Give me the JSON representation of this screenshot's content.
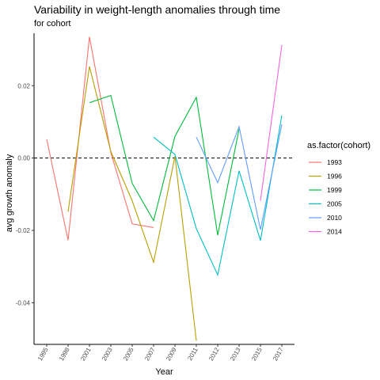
{
  "chart_data": {
    "type": "line",
    "title": "Variability in weight-length anomalies through time",
    "subtitle": "for cohort",
    "xlabel": "Year",
    "ylabel": "avg growth anomaly",
    "x_categories": [
      "1995",
      "1998",
      "2001",
      "2003",
      "2005",
      "2007",
      "2009",
      "2011",
      "2012",
      "2013",
      "2015",
      "2017"
    ],
    "yticks": [
      0.02,
      0.0,
      -0.02,
      -0.04
    ],
    "ytick_labels": [
      "0.02",
      "0.00",
      "-0.02",
      "-0.04"
    ],
    "ylim": [
      -0.0515,
      0.0345
    ],
    "reference_line": {
      "y": 0.0,
      "style": "dashed"
    },
    "grid": false,
    "legend_title": "as.factor(cohort)",
    "legend_position": "right",
    "series": [
      {
        "name": "1993",
        "color": "#F8766D",
        "x": [
          "1995",
          "1998",
          "2001",
          "2003",
          "2005",
          "2007"
        ],
        "values": [
          0.0052,
          -0.0227,
          0.0335,
          0.0015,
          -0.0182,
          -0.0192
        ]
      },
      {
        "name": "1996",
        "color": "#B79F00",
        "x": [
          "1998",
          "2001",
          "2003",
          "2005",
          "2007",
          "2009",
          "2011"
        ],
        "values": [
          -0.0148,
          0.0253,
          0.0018,
          -0.0118,
          -0.0288,
          0.0005,
          -0.0505
        ]
      },
      {
        "name": "1999",
        "color": "#00BA38",
        "x": [
          "2001",
          "2003",
          "2005",
          "2007",
          "2009",
          "2011",
          "2012",
          "2013"
        ],
        "values": [
          0.0153,
          0.0173,
          -0.007,
          -0.0173,
          0.006,
          0.0168,
          -0.0213,
          0.008
        ]
      },
      {
        "name": "2005",
        "color": "#00BFC4",
        "x": [
          "2007",
          "2009",
          "2011",
          "2012",
          "2013",
          "2015",
          "2017"
        ],
        "values": [
          0.0058,
          0.001,
          -0.0195,
          -0.0323,
          -0.0035,
          -0.0228,
          0.0118
        ]
      },
      {
        "name": "2010",
        "color": "#619CFF",
        "x": [
          "2011",
          "2012",
          "2013",
          "2015",
          "2017"
        ],
        "values": [
          0.0058,
          -0.0068,
          0.0087,
          -0.0198,
          0.0093
        ]
      },
      {
        "name": "2014",
        "color": "#F564E3",
        "x": [
          "2015",
          "2017"
        ],
        "values": [
          -0.0118,
          0.0312
        ]
      }
    ]
  }
}
